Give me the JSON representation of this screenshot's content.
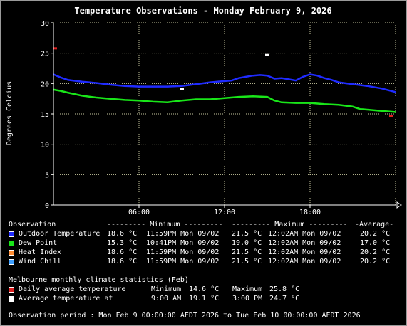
{
  "chart_data": {
    "type": "line",
    "title": "Temperature Observations - Monday February 9, 2026",
    "ylabel": "Degrees Celcius",
    "xlabel": "",
    "ylim": [
      0,
      30
    ],
    "xlim": [
      0,
      24
    ],
    "yticks": [
      0,
      5,
      10,
      15,
      20,
      25,
      30
    ],
    "ytick_labels": [
      "0",
      "5",
      "10",
      "15",
      "20",
      "25",
      "30"
    ],
    "xticks": [
      6,
      12,
      18
    ],
    "xtick_labels": [
      "06:00",
      "12:00",
      "18:00"
    ],
    "grid": true,
    "series": [
      {
        "name": "Outdoor Temperature",
        "color": "#1f2bff",
        "x": [
          0,
          0.5,
          1,
          2,
          3,
          4,
          5,
          6,
          7,
          8,
          9,
          10,
          11,
          12,
          12.5,
          13,
          13.5,
          14,
          14.5,
          15,
          15.5,
          16,
          16.5,
          17,
          17.5,
          18,
          18.5,
          19,
          19.5,
          20,
          21,
          22,
          23,
          24
        ],
        "y": [
          21.5,
          21.0,
          20.6,
          20.3,
          20.1,
          19.8,
          19.6,
          19.5,
          19.5,
          19.5,
          19.6,
          19.9,
          20.2,
          20.4,
          20.5,
          20.9,
          21.1,
          21.3,
          21.4,
          21.3,
          20.8,
          20.9,
          20.7,
          20.5,
          21.1,
          21.5,
          21.3,
          20.9,
          20.6,
          20.2,
          19.9,
          19.6,
          19.2,
          18.6
        ]
      },
      {
        "name": "Dew Point",
        "color": "#19e619",
        "x": [
          0,
          0.5,
          1,
          2,
          3,
          4,
          5,
          6,
          7,
          8,
          9,
          10,
          11,
          12,
          13,
          14,
          15,
          15.5,
          16,
          17,
          18,
          19,
          20,
          21,
          21.5,
          22,
          23,
          24
        ],
        "y": [
          19.0,
          18.8,
          18.5,
          18.0,
          17.7,
          17.5,
          17.3,
          17.2,
          17.0,
          16.9,
          17.2,
          17.4,
          17.4,
          17.6,
          17.8,
          17.9,
          17.8,
          17.2,
          16.9,
          16.8,
          16.8,
          16.6,
          16.5,
          16.2,
          15.8,
          15.7,
          15.5,
          15.3
        ]
      }
    ],
    "climate_markers": [
      {
        "name": "Daily average temperature",
        "color": "#e02020",
        "points": [
          {
            "x": 0.1,
            "y": 25.8
          },
          {
            "x": 23.7,
            "y": 14.6
          }
        ]
      },
      {
        "name": "Average temperature at",
        "color": "#ffffff",
        "points": [
          {
            "x": 9,
            "y": 19.1
          },
          {
            "x": 15,
            "y": 24.7
          }
        ]
      }
    ]
  },
  "legend": {
    "header": {
      "observation": "Observation",
      "minimum": "--------- Minimum ---------",
      "maximum": "--------- Maximum ---------",
      "average": "-Average-"
    },
    "rows": [
      {
        "label": "Outdoor Temperature",
        "color": "#1f2bff",
        "min_val": "18.6 °C",
        "min_time": "11:59PM Mon 09/02",
        "max_val": "21.5 °C",
        "max_time": "12:02AM Mon 09/02",
        "avg": "20.2 °C"
      },
      {
        "label": "Dew Point",
        "color": "#19e619",
        "min_val": "15.3 °C",
        "min_time": "10:41PM Mon 09/02",
        "max_val": "19.0 °C",
        "max_time": "12:02AM Mon 09/02",
        "avg": "17.0 °C"
      },
      {
        "label": "Heat Index",
        "color": "#ff8c32",
        "min_val": "18.6 °C",
        "min_time": "11:59PM Mon 09/02",
        "max_val": "21.5 °C",
        "max_time": "12:02AM Mon 09/02",
        "avg": "20.2 °C"
      },
      {
        "label": "Wind Chill",
        "color": "#3fa0ff",
        "min_val": "18.6 °C",
        "min_time": "11:59PM Mon 09/02",
        "max_val": "21.5 °C",
        "max_time": "12:02AM Mon 09/02",
        "avg": "20.2 °C"
      }
    ]
  },
  "climate": {
    "header": "Melbourne monthly climate statistics (Feb)",
    "rows": [
      {
        "label": "Daily average temperature",
        "color": "#e02020",
        "a_label": "Minimum",
        "a_val": "14.6 °C",
        "b_label": "Maximum",
        "b_val": "25.8 °C"
      },
      {
        "label": "Average temperature at",
        "color": "#ffffff",
        "a_label": "9:00 AM",
        "a_val": "19.1 °C",
        "b_label": "3:00 PM",
        "b_val": "24.7 °C"
      }
    ]
  },
  "period": "Observation period : Mon Feb 9 00:00:00 AEDT 2026 to Tue Feb 10 00:00:00 AEDT 2026"
}
